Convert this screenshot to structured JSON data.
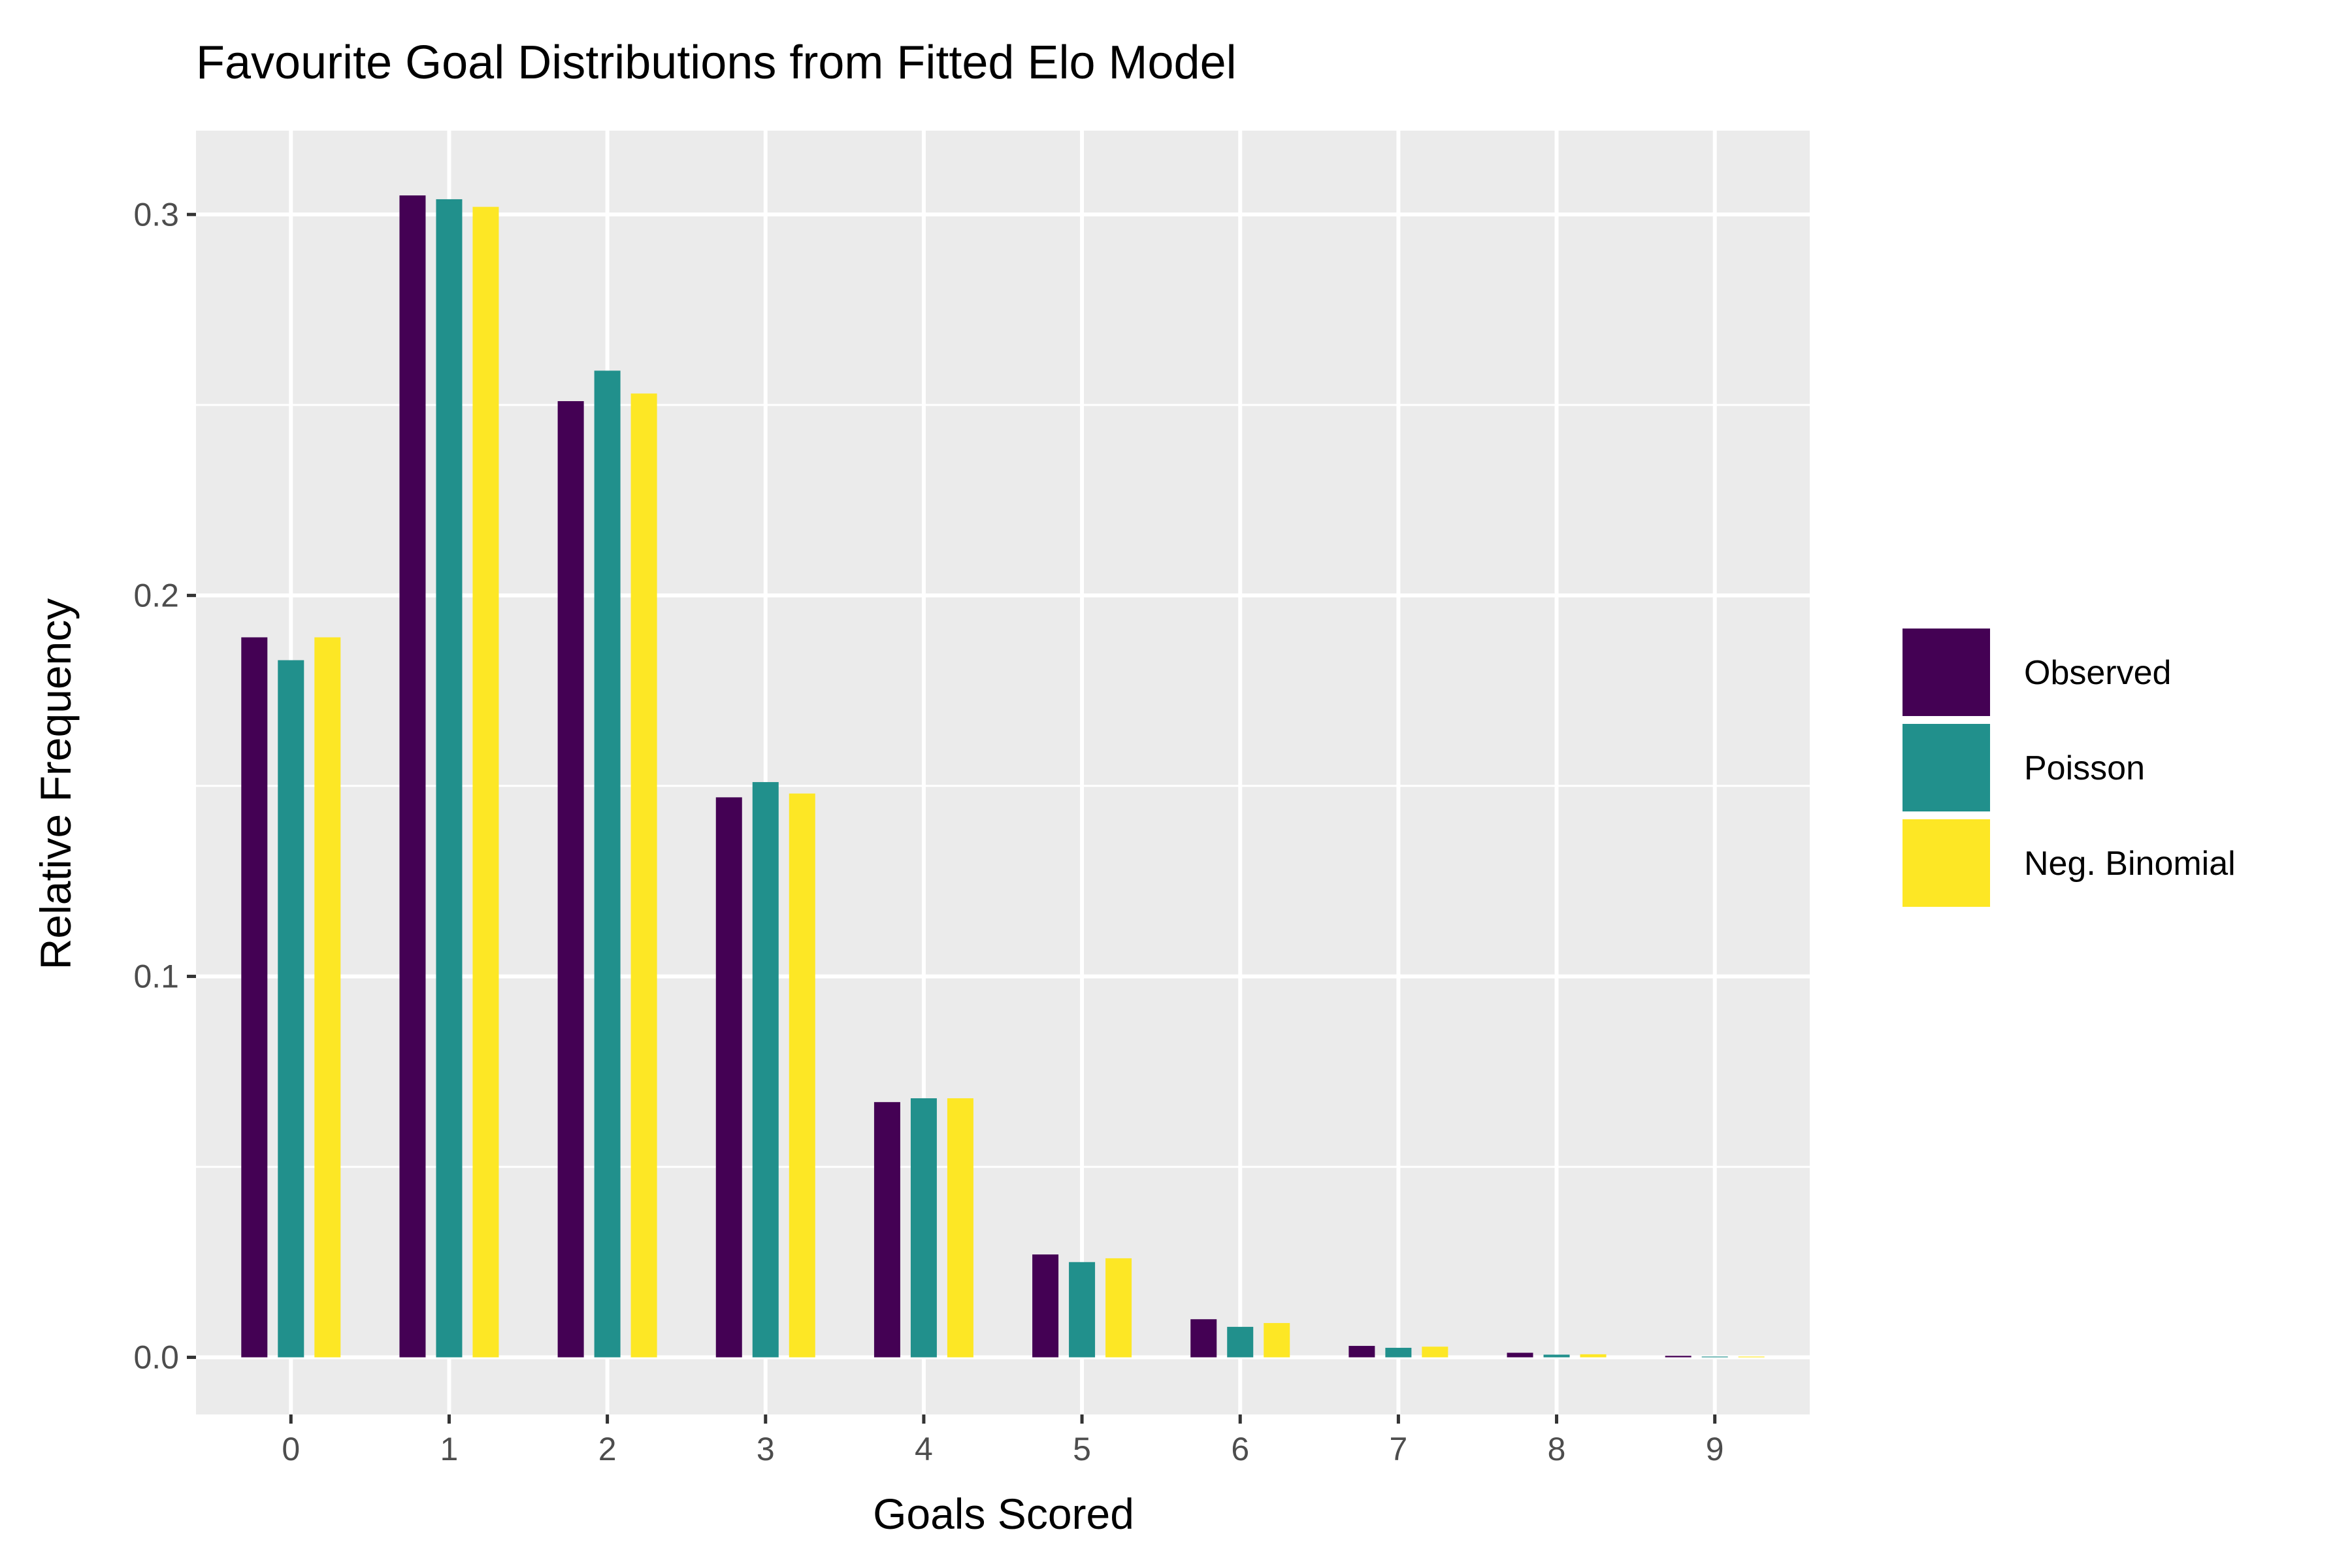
{
  "chart_data": {
    "type": "bar",
    "title": "Favourite Goal Distributions from Fitted Elo Model",
    "xlabel": "Goals Scored",
    "ylabel": "Relative Frequency",
    "categories": [
      "0",
      "1",
      "2",
      "3",
      "4",
      "5",
      "6",
      "7",
      "8",
      "9"
    ],
    "series": [
      {
        "name": "Observed",
        "color": "#440154",
        "values": [
          0.189,
          0.305,
          0.251,
          0.147,
          0.067,
          0.027,
          0.01,
          0.003,
          0.0012,
          0.0004
        ]
      },
      {
        "name": "Poisson",
        "color": "#21908C",
        "values": [
          0.183,
          0.304,
          0.259,
          0.151,
          0.068,
          0.025,
          0.008,
          0.0025,
          0.0007,
          0.0002
        ]
      },
      {
        "name": "Neg. Binomial",
        "color": "#FDE725",
        "values": [
          0.189,
          0.302,
          0.253,
          0.148,
          0.068,
          0.026,
          0.009,
          0.0028,
          0.0008,
          0.0002
        ]
      }
    ],
    "ylim": [
      -0.015,
      0.322
    ],
    "yticks": [
      "0.0",
      "0.1",
      "0.2",
      "0.3"
    ],
    "grid": true,
    "legend_position": "right",
    "panel_background": "#EBEBEB",
    "grid_color": "#FFFFFF"
  }
}
